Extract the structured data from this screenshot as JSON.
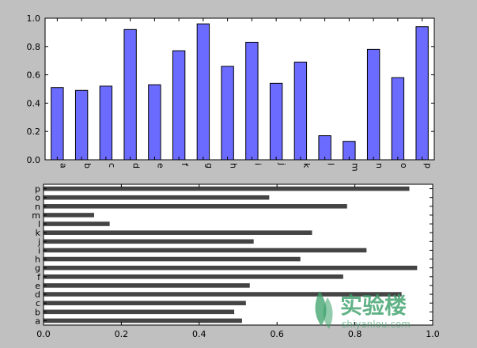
{
  "figure": {
    "background": "#c0c0c0"
  },
  "chart_data": [
    {
      "type": "bar",
      "orientation": "vertical",
      "categories": [
        "a",
        "b",
        "c",
        "d",
        "e",
        "f",
        "g",
        "h",
        "i",
        "j",
        "k",
        "l",
        "m",
        "n",
        "o",
        "p"
      ],
      "values": [
        0.51,
        0.49,
        0.52,
        0.92,
        0.53,
        0.77,
        0.96,
        0.66,
        0.83,
        0.54,
        0.69,
        0.17,
        0.13,
        0.78,
        0.58,
        0.94
      ],
      "ylim": [
        0,
        1.0
      ],
      "yticks": [
        "0.0",
        "0.2",
        "0.4",
        "0.6",
        "0.8",
        "1.0"
      ],
      "ytick_values": [
        0,
        0.2,
        0.4,
        0.6,
        0.8,
        1.0
      ],
      "bar_color": "#6b6bff",
      "edge_color": "#000000",
      "grid": false,
      "title": "",
      "xlabel": "",
      "ylabel": ""
    },
    {
      "type": "bar",
      "orientation": "horizontal",
      "categories": [
        "a",
        "b",
        "c",
        "d",
        "e",
        "f",
        "g",
        "h",
        "i",
        "j",
        "k",
        "l",
        "m",
        "n",
        "o",
        "p"
      ],
      "values": [
        0.51,
        0.49,
        0.52,
        0.92,
        0.53,
        0.77,
        0.96,
        0.66,
        0.83,
        0.54,
        0.69,
        0.17,
        0.13,
        0.78,
        0.58,
        0.94
      ],
      "xlim": [
        0,
        1.0
      ],
      "xticks": [
        "0.0",
        "0.2",
        "0.4",
        "0.6",
        "0.8",
        "1.0"
      ],
      "xtick_values": [
        0,
        0.2,
        0.4,
        0.6,
        0.8,
        1.0
      ],
      "bar_color": "#444444",
      "grid": false,
      "title": "",
      "xlabel": "",
      "ylabel": ""
    }
  ],
  "watermark": {
    "title": "实验楼",
    "subtitle": "shiyanlou.com",
    "color": "#3aa06a"
  }
}
